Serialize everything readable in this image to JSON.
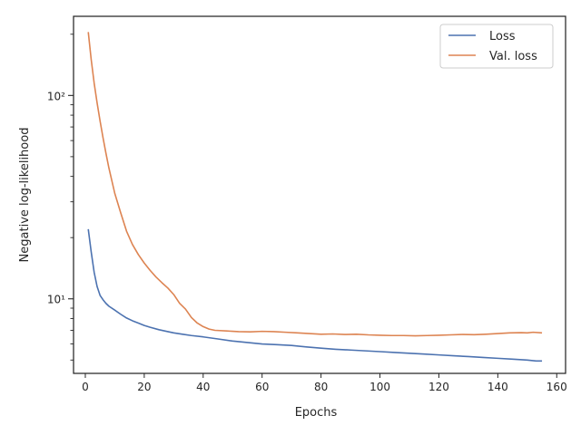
{
  "chart_data": {
    "type": "line",
    "title": "",
    "xlabel": "Epochs",
    "ylabel": "Negative log-likelihood",
    "xlim": [
      -4,
      163
    ],
    "ylim": [
      4.3,
      245
    ],
    "yscale": "log",
    "grid": false,
    "legend_position": "top-right",
    "x_ticks": [
      0,
      20,
      40,
      60,
      80,
      100,
      120,
      140,
      160
    ],
    "x_tick_labels": [
      "0",
      "20",
      "40",
      "60",
      "80",
      "100",
      "120",
      "140",
      "160"
    ],
    "y_major_ticks": [
      10,
      100
    ],
    "y_tick_labels": [
      "10¹",
      "10²"
    ],
    "y_minor_ticks": [
      5,
      6,
      7,
      8,
      9,
      20,
      30,
      40,
      50,
      60,
      70,
      80,
      90,
      200
    ],
    "series": [
      {
        "name": "Loss",
        "color": "#4c72b0",
        "x": [
          1,
          2,
          3,
          4,
          5,
          6,
          7,
          8,
          10,
          12,
          14,
          16,
          18,
          20,
          22,
          25,
          28,
          30,
          33,
          36,
          40,
          45,
          50,
          55,
          60,
          65,
          70,
          75,
          80,
          85,
          90,
          95,
          100,
          105,
          110,
          115,
          120,
          125,
          130,
          135,
          140,
          145,
          150,
          153,
          155
        ],
        "y": [
          22,
          17,
          13.5,
          11.5,
          10.4,
          9.9,
          9.5,
          9.2,
          8.8,
          8.4,
          8.05,
          7.8,
          7.6,
          7.4,
          7.25,
          7.05,
          6.9,
          6.8,
          6.7,
          6.6,
          6.5,
          6.35,
          6.2,
          6.1,
          6.0,
          5.95,
          5.9,
          5.8,
          5.72,
          5.65,
          5.6,
          5.55,
          5.5,
          5.45,
          5.4,
          5.35,
          5.3,
          5.25,
          5.2,
          5.15,
          5.1,
          5.05,
          5.0,
          4.95,
          4.95
        ]
      },
      {
        "name": "Val. loss",
        "color": "#dd8452",
        "x": [
          1,
          2,
          3,
          4,
          5,
          6,
          7,
          8,
          10,
          12,
          14,
          16,
          18,
          20,
          22,
          24,
          26,
          28,
          30,
          32,
          34,
          36,
          38,
          40,
          42,
          44,
          48,
          52,
          56,
          60,
          64,
          68,
          72,
          76,
          80,
          84,
          88,
          92,
          96,
          100,
          104,
          108,
          112,
          116,
          120,
          124,
          128,
          132,
          136,
          140,
          144,
          148,
          150,
          152,
          155
        ],
        "y": [
          205,
          150,
          115,
          92,
          75,
          62,
          52,
          44,
          33,
          26.5,
          21.5,
          18.5,
          16.5,
          15,
          13.8,
          12.8,
          12,
          11.3,
          10.5,
          9.5,
          8.9,
          8.1,
          7.6,
          7.3,
          7.1,
          7.0,
          6.95,
          6.9,
          6.88,
          6.92,
          6.9,
          6.85,
          6.8,
          6.75,
          6.7,
          6.72,
          6.68,
          6.7,
          6.65,
          6.62,
          6.6,
          6.6,
          6.58,
          6.6,
          6.62,
          6.65,
          6.68,
          6.66,
          6.7,
          6.75,
          6.8,
          6.82,
          6.8,
          6.85,
          6.8
        ]
      }
    ]
  }
}
